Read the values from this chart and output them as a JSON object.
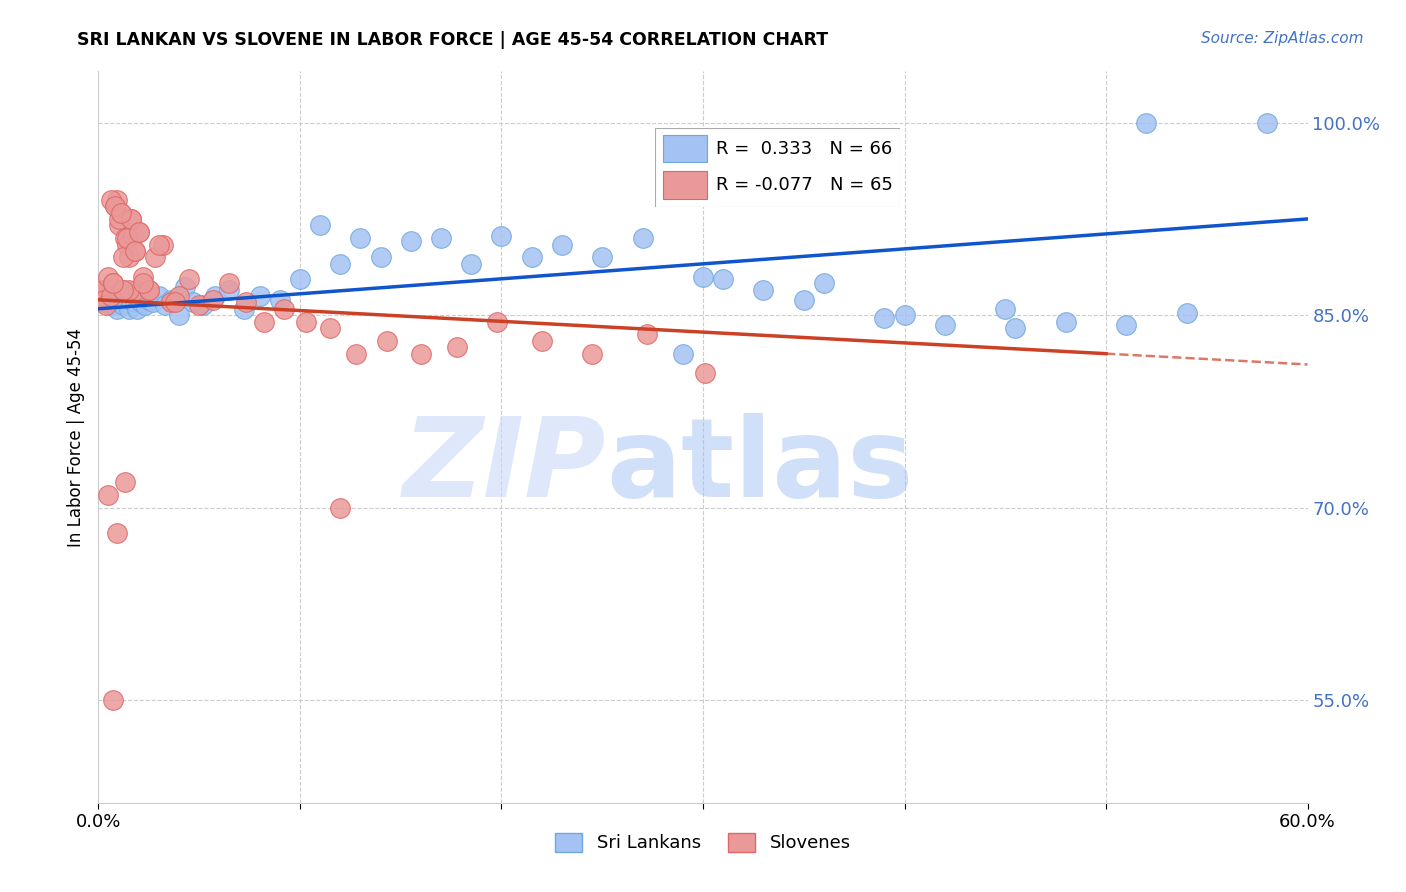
{
  "title": "SRI LANKAN VS SLOVENE IN LABOR FORCE | AGE 45-54 CORRELATION CHART",
  "source": "Source: ZipAtlas.com",
  "ylabel": "In Labor Force | Age 45-54",
  "xlim": [
    0.0,
    0.6
  ],
  "ylim": [
    0.47,
    1.04
  ],
  "x_ticks": [
    0.0,
    0.1,
    0.2,
    0.3,
    0.4,
    0.5,
    0.6
  ],
  "x_tick_labels": [
    "0.0%",
    "",
    "",
    "",
    "",
    "",
    "60.0%"
  ],
  "y_ticks": [
    0.55,
    0.7,
    0.85,
    1.0
  ],
  "y_tick_labels": [
    "55.0%",
    "70.0%",
    "85.0%",
    "100.0%"
  ],
  "legend_r1": "R =  0.333   N = 66",
  "legend_r2": "R = -0.077   N = 65",
  "sri_lankans_label": "Sri Lankans",
  "slovenes_label": "Slovenes",
  "blue_color": "#a4c2f4",
  "pink_color": "#ea9999",
  "blue_edge_color": "#6fa8dc",
  "pink_edge_color": "#e06666",
  "blue_line_color": "#1155cc",
  "pink_line_color": "#cc4125",
  "sri_lankan_x": [
    0.001,
    0.002,
    0.003,
    0.004,
    0.005,
    0.006,
    0.007,
    0.008,
    0.009,
    0.01,
    0.011,
    0.012,
    0.013,
    0.014,
    0.015,
    0.016,
    0.017,
    0.018,
    0.019,
    0.02,
    0.021,
    0.022,
    0.023,
    0.025,
    0.027,
    0.03,
    0.033,
    0.036,
    0.04,
    0.043,
    0.047,
    0.052,
    0.058,
    0.065,
    0.072,
    0.08,
    0.09,
    0.1,
    0.11,
    0.12,
    0.13,
    0.14,
    0.155,
    0.17,
    0.185,
    0.2,
    0.215,
    0.23,
    0.25,
    0.27,
    0.29,
    0.31,
    0.33,
    0.36,
    0.39,
    0.42,
    0.45,
    0.48,
    0.51,
    0.54,
    0.3,
    0.35,
    0.4,
    0.455,
    0.52,
    0.58
  ],
  "sri_lankan_y": [
    0.862,
    0.86,
    0.865,
    0.87,
    0.86,
    0.858,
    0.862,
    0.868,
    0.855,
    0.87,
    0.862,
    0.858,
    0.865,
    0.86,
    0.855,
    0.862,
    0.868,
    0.86,
    0.855,
    0.862,
    0.86,
    0.865,
    0.858,
    0.862,
    0.86,
    0.865,
    0.858,
    0.862,
    0.85,
    0.872,
    0.86,
    0.858,
    0.865,
    0.87,
    0.855,
    0.865,
    0.862,
    0.878,
    0.92,
    0.89,
    0.91,
    0.895,
    0.908,
    0.91,
    0.89,
    0.912,
    0.895,
    0.905,
    0.895,
    0.91,
    0.82,
    0.878,
    0.87,
    0.875,
    0.848,
    0.842,
    0.855,
    0.845,
    0.842,
    0.852,
    0.88,
    0.862,
    0.85,
    0.84,
    1.0,
    1.0
  ],
  "slovene_x": [
    0.001,
    0.002,
    0.003,
    0.004,
    0.005,
    0.006,
    0.007,
    0.008,
    0.009,
    0.01,
    0.011,
    0.012,
    0.013,
    0.014,
    0.015,
    0.016,
    0.017,
    0.018,
    0.019,
    0.02,
    0.022,
    0.025,
    0.028,
    0.032,
    0.036,
    0.04,
    0.045,
    0.05,
    0.057,
    0.065,
    0.073,
    0.082,
    0.092,
    0.103,
    0.115,
    0.128,
    0.143,
    0.16,
    0.178,
    0.198,
    0.22,
    0.245,
    0.272,
    0.301,
    0.012,
    0.025,
    0.038,
    0.015,
    0.022,
    0.03,
    0.006,
    0.01,
    0.014,
    0.018,
    0.008,
    0.012,
    0.016,
    0.02,
    0.007,
    0.011,
    0.005,
    0.009,
    0.013,
    0.007,
    0.12
  ],
  "slovene_y": [
    0.868,
    0.87,
    0.862,
    0.858,
    0.88,
    0.865,
    0.875,
    0.935,
    0.94,
    0.92,
    0.93,
    0.87,
    0.91,
    0.905,
    0.895,
    0.925,
    0.912,
    0.9,
    0.87,
    0.915,
    0.88,
    0.87,
    0.895,
    0.905,
    0.86,
    0.865,
    0.878,
    0.858,
    0.862,
    0.875,
    0.86,
    0.845,
    0.855,
    0.845,
    0.84,
    0.82,
    0.83,
    0.82,
    0.825,
    0.845,
    0.83,
    0.82,
    0.835,
    0.805,
    0.895,
    0.87,
    0.86,
    0.87,
    0.875,
    0.905,
    0.94,
    0.925,
    0.91,
    0.9,
    0.935,
    0.87,
    0.925,
    0.915,
    0.875,
    0.93,
    0.71,
    0.68,
    0.72,
    0.55,
    0.7
  ]
}
